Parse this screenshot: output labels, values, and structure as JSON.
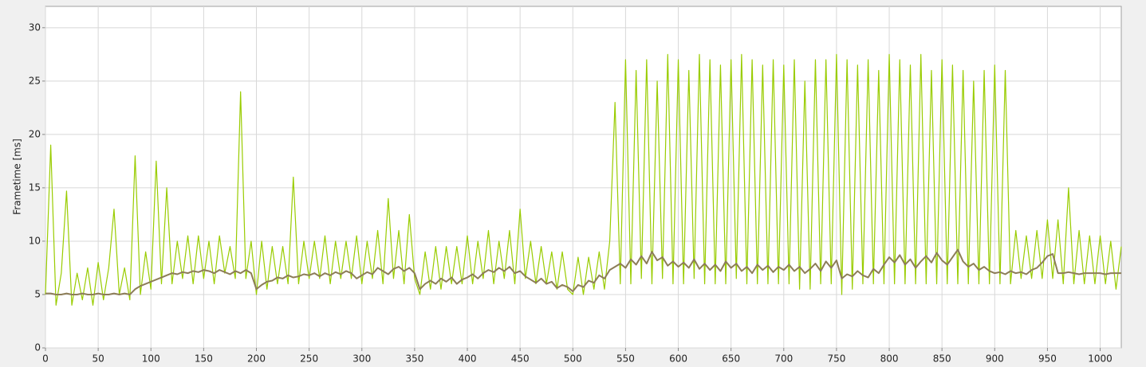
{
  "chart_data": {
    "type": "line",
    "ylabel": "Frametime [ms]",
    "xlim": [
      0,
      1020
    ],
    "ylim": [
      0,
      32
    ],
    "xticks": [
      0,
      50,
      100,
      150,
      200,
      250,
      300,
      350,
      400,
      450,
      500,
      550,
      600,
      650,
      700,
      750,
      800,
      850,
      900,
      950,
      1000
    ],
    "yticks": [
      0,
      5,
      10,
      15,
      20,
      25,
      30
    ],
    "grid": true,
    "x": [
      0,
      5,
      10,
      15,
      20,
      25,
      30,
      35,
      40,
      45,
      50,
      55,
      60,
      65,
      70,
      75,
      80,
      85,
      90,
      95,
      100,
      105,
      110,
      115,
      120,
      125,
      130,
      135,
      140,
      145,
      150,
      155,
      160,
      165,
      170,
      175,
      180,
      185,
      190,
      195,
      200,
      205,
      210,
      215,
      220,
      225,
      230,
      235,
      240,
      245,
      250,
      255,
      260,
      265,
      270,
      275,
      280,
      285,
      290,
      295,
      300,
      305,
      310,
      315,
      320,
      325,
      330,
      335,
      340,
      345,
      350,
      355,
      360,
      365,
      370,
      375,
      380,
      385,
      390,
      395,
      400,
      405,
      410,
      415,
      420,
      425,
      430,
      435,
      440,
      445,
      450,
      455,
      460,
      465,
      470,
      475,
      480,
      485,
      490,
      495,
      500,
      505,
      510,
      515,
      520,
      525,
      530,
      535,
      540,
      545,
      550,
      555,
      560,
      565,
      570,
      575,
      580,
      585,
      590,
      595,
      600,
      605,
      610,
      615,
      620,
      625,
      630,
      635,
      640,
      645,
      650,
      655,
      660,
      665,
      670,
      675,
      680,
      685,
      690,
      695,
      700,
      705,
      710,
      715,
      720,
      725,
      730,
      735,
      740,
      745,
      750,
      755,
      760,
      765,
      770,
      775,
      780,
      785,
      790,
      795,
      800,
      805,
      810,
      815,
      820,
      825,
      830,
      835,
      840,
      845,
      850,
      855,
      860,
      865,
      870,
      875,
      880,
      885,
      890,
      895,
      900,
      905,
      910,
      915,
      920,
      925,
      930,
      935,
      940,
      945,
      950,
      955,
      960,
      965,
      970,
      975,
      980,
      985,
      990,
      995,
      1000,
      1005,
      1010,
      1015,
      1020
    ],
    "series": [
      {
        "color": "#99cc00",
        "values": [
          5,
          19,
          4,
          7,
          14.7,
          4,
          7,
          4.5,
          7.5,
          4,
          8,
          4.5,
          7.5,
          13,
          5,
          7.5,
          4.5,
          18,
          5,
          9,
          5.5,
          17.5,
          6,
          15,
          6,
          10,
          6.5,
          10.5,
          6,
          10.5,
          6.5,
          10,
          6,
          10.5,
          7,
          9.5,
          6.5,
          24,
          6.5,
          10,
          5,
          10,
          5.5,
          9.5,
          6,
          9.5,
          6,
          16,
          6,
          10,
          6.5,
          10,
          6.5,
          10.5,
          6,
          10,
          6.5,
          10,
          6.5,
          10.5,
          6,
          10,
          6.5,
          11,
          6,
          14,
          6.5,
          11,
          6,
          12.5,
          6.5,
          5,
          9,
          5.5,
          9.5,
          5.5,
          9.5,
          6,
          9.5,
          6,
          10.5,
          6,
          10,
          6.5,
          11,
          6,
          10,
          6.5,
          11,
          6,
          13,
          6.5,
          10,
          6,
          9.5,
          6,
          9,
          5.5,
          9,
          5.5,
          5,
          8.5,
          5,
          8.5,
          5.5,
          9,
          5.5,
          10,
          23,
          6,
          27,
          6,
          26,
          6.5,
          27,
          6,
          25,
          6.5,
          27.5,
          6,
          27,
          6,
          26,
          6.5,
          27.5,
          6,
          27,
          6,
          26.5,
          6,
          27,
          6.5,
          27.5,
          6,
          27,
          6,
          26.5,
          6,
          27,
          6,
          26.5,
          6,
          27,
          5.5,
          25,
          5.5,
          27,
          6,
          27,
          6,
          27.5,
          5,
          27,
          5.5,
          26.5,
          6,
          27,
          6,
          26,
          6,
          27.5,
          6,
          27,
          6,
          26.5,
          6,
          27.5,
          6,
          26,
          6,
          27,
          6,
          26.5,
          6,
          26,
          6,
          25,
          6,
          26,
          6,
          26.5,
          6,
          26,
          6,
          11,
          6.5,
          10.5,
          6.5,
          11,
          6.5,
          12,
          6.5,
          12,
          6,
          15,
          6,
          11,
          6,
          10.5,
          6,
          10.5,
          6,
          10,
          5.5,
          9.5
        ]
      },
      {
        "color": "#8c7d58",
        "values": [
          5.1,
          5.1,
          5.0,
          5.0,
          5.1,
          5.0,
          5.0,
          5.1,
          5.0,
          5.0,
          5.1,
          5.0,
          5.0,
          5.1,
          5.0,
          5.1,
          5.0,
          5.5,
          5.8,
          6.0,
          6.2,
          6.4,
          6.6,
          6.8,
          7.0,
          6.9,
          7.1,
          7.0,
          7.2,
          7.1,
          7.3,
          7.2,
          7.0,
          7.3,
          7.1,
          6.9,
          7.2,
          7.0,
          7.3,
          7.0,
          5.5,
          5.9,
          6.2,
          6.3,
          6.6,
          6.5,
          6.8,
          6.6,
          6.7,
          6.9,
          6.8,
          7.0,
          6.7,
          7.0,
          6.8,
          7.1,
          6.9,
          7.2,
          7.0,
          6.5,
          6.8,
          7.1,
          6.9,
          7.5,
          7.2,
          6.9,
          7.4,
          7.6,
          7.2,
          7.5,
          7.0,
          5.5,
          6.0,
          6.3,
          6.0,
          6.5,
          6.2,
          6.6,
          6.0,
          6.4,
          6.6,
          6.9,
          6.5,
          7.0,
          7.3,
          7.1,
          7.5,
          7.2,
          7.6,
          7.0,
          7.2,
          6.7,
          6.4,
          6.1,
          6.5,
          6.0,
          6.2,
          5.6,
          5.9,
          5.7,
          5.3,
          5.9,
          5.7,
          6.3,
          6.1,
          6.8,
          6.5,
          7.3,
          7.6,
          7.9,
          7.5,
          8.3,
          7.8,
          8.6,
          7.9,
          9.0,
          8.2,
          8.5,
          7.7,
          8.1,
          7.6,
          8.0,
          7.5,
          8.3,
          7.4,
          7.9,
          7.3,
          7.8,
          7.2,
          8.1,
          7.5,
          7.9,
          7.2,
          7.6,
          7.0,
          7.8,
          7.3,
          7.7,
          7.1,
          7.6,
          7.3,
          7.8,
          7.2,
          7.6,
          7.0,
          7.4,
          7.9,
          7.2,
          8.1,
          7.5,
          8.2,
          6.5,
          6.9,
          6.7,
          7.2,
          6.8,
          6.6,
          7.4,
          7.0,
          7.8,
          8.5,
          8.0,
          8.7,
          7.8,
          8.3,
          7.5,
          8.1,
          8.6,
          8.0,
          8.9,
          8.2,
          7.8,
          8.5,
          9.2,
          8.1,
          7.6,
          7.9,
          7.3,
          7.6,
          7.2,
          7.0,
          7.1,
          6.9,
          7.2,
          7.0,
          7.1,
          6.9,
          7.3,
          7.5,
          8.0,
          8.6,
          8.8,
          7.0,
          7.0,
          7.1,
          7.0,
          6.9,
          7.0,
          7.0,
          7.0,
          7.0,
          6.9,
          7.0,
          7.0,
          7.0
        ]
      }
    ]
  }
}
